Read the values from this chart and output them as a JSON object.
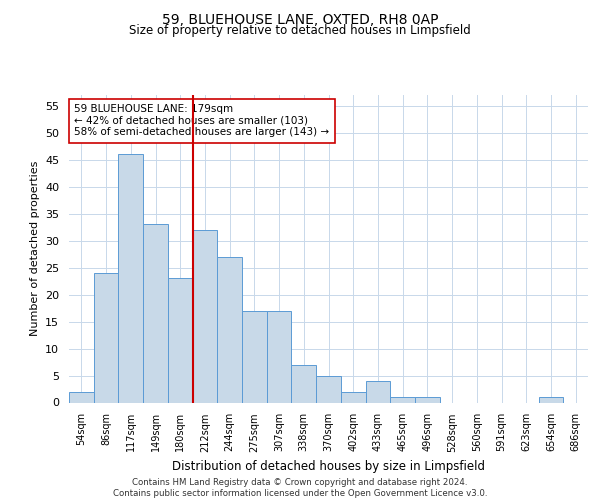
{
  "title1": "59, BLUEHOUSE LANE, OXTED, RH8 0AP",
  "title2": "Size of property relative to detached houses in Limpsfield",
  "xlabel": "Distribution of detached houses by size in Limpsfield",
  "ylabel": "Number of detached properties",
  "categories": [
    "54sqm",
    "86sqm",
    "117sqm",
    "149sqm",
    "180sqm",
    "212sqm",
    "244sqm",
    "275sqm",
    "307sqm",
    "338sqm",
    "370sqm",
    "402sqm",
    "433sqm",
    "465sqm",
    "496sqm",
    "528sqm",
    "560sqm",
    "591sqm",
    "623sqm",
    "654sqm",
    "686sqm"
  ],
  "values": [
    2,
    24,
    46,
    33,
    23,
    32,
    27,
    17,
    17,
    7,
    5,
    2,
    4,
    1,
    1,
    0,
    0,
    0,
    0,
    1,
    0
  ],
  "bar_color": "#c8d9e8",
  "bar_edge_color": "#5b9bd5",
  "highlight_line_index": 4,
  "highlight_line_color": "#cc0000",
  "annotation_text": "59 BLUEHOUSE LANE: 179sqm\n← 42% of detached houses are smaller (103)\n58% of semi-detached houses are larger (143) →",
  "annotation_box_color": "#ffffff",
  "annotation_box_edge_color": "#cc0000",
  "ylim": [
    0,
    57
  ],
  "yticks": [
    0,
    5,
    10,
    15,
    20,
    25,
    30,
    35,
    40,
    45,
    50,
    55
  ],
  "footer": "Contains HM Land Registry data © Crown copyright and database right 2024.\nContains public sector information licensed under the Open Government Licence v3.0.",
  "bg_color": "#ffffff",
  "grid_color": "#c8d8ea"
}
